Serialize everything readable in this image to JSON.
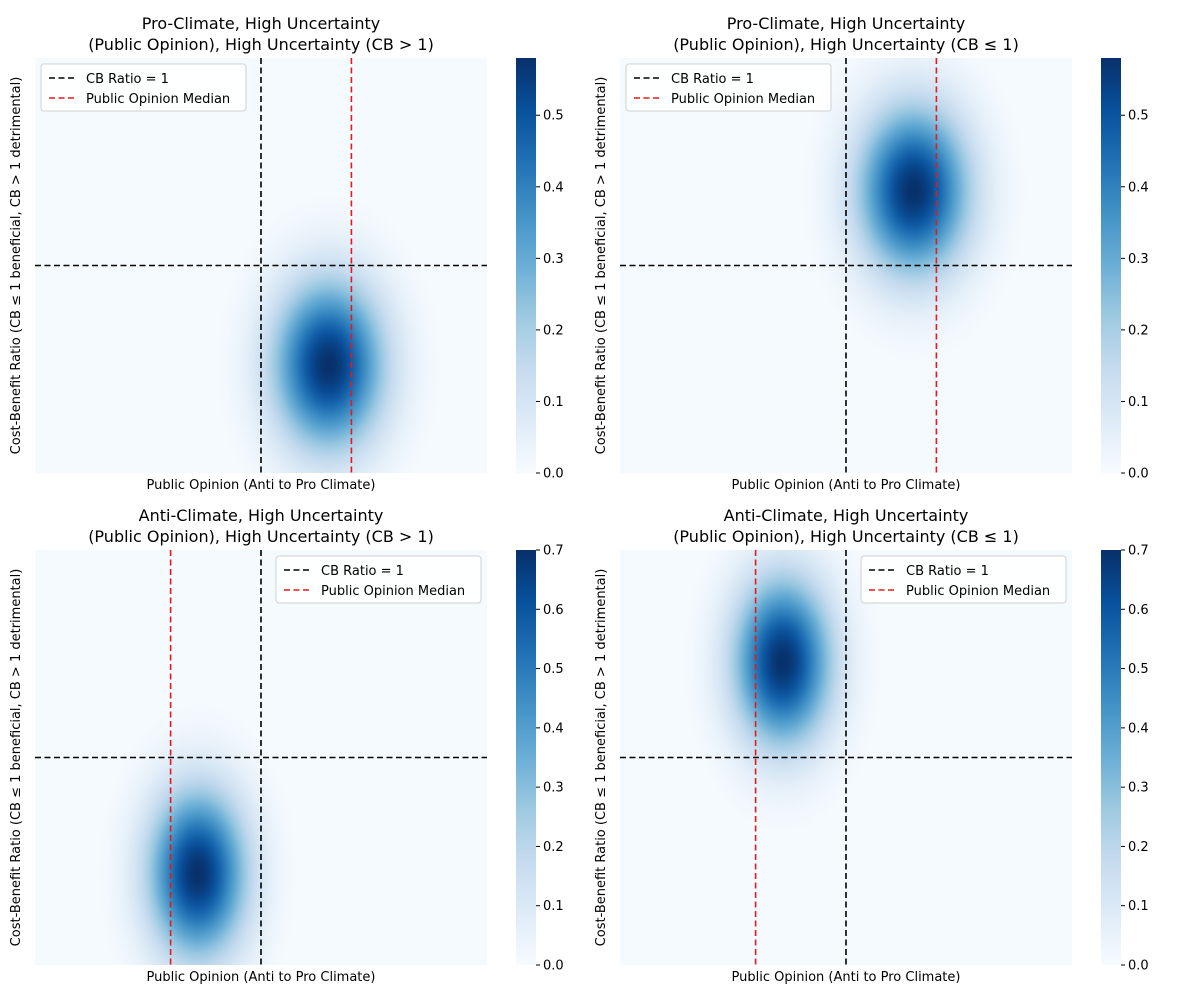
{
  "colormap": [
    "#f7fbff",
    "#deebf7",
    "#c6dbef",
    "#9ecae1",
    "#6baed6",
    "#4292c6",
    "#2171b5",
    "#08519c",
    "#08306b"
  ],
  "reference_line_colors": {
    "cb_ratio": "#000000",
    "median": "#e41a1c"
  },
  "chart_data": [
    {
      "type": "heatmap",
      "title": "Pro-Climate, High Uncertainty\n(Public Opinion), High Uncertainty (CB > 1)",
      "xlabel": "Public Opinion (Anti to Pro Climate)",
      "ylabel": "Cost-Benefit Ratio (CB ≤ 1 beneficial, CB > 1 detrimental)",
      "xlim": [
        0,
        1
      ],
      "ylim": [
        0,
        1
      ],
      "colorbar": {
        "min": 0,
        "max": 0.58,
        "ticks": [
          "0.0",
          "0.1",
          "0.2",
          "0.3",
          "0.4",
          "0.5"
        ]
      },
      "density": {
        "center_x": 0.65,
        "center_y": 0.26,
        "sigma_x": 0.085,
        "sigma_y": 0.14,
        "peak": 0.58
      },
      "reference_lines": {
        "cb_ratio_x": 0.5,
        "cb_ratio_y": 0.5,
        "median_x": 0.7
      },
      "legend": {
        "position": "upper-left",
        "entries": [
          "CB Ratio = 1",
          "Public Opinion Median"
        ]
      }
    },
    {
      "type": "heatmap",
      "title": "Pro-Climate, High Uncertainty\n(Public Opinion), High Uncertainty (CB ≤ 1)",
      "xlabel": "Public Opinion (Anti to Pro Climate)",
      "ylabel": "Cost-Benefit Ratio (CB ≤ 1 beneficial, CB > 1 detrimental)",
      "xlim": [
        0,
        1
      ],
      "ylim": [
        0,
        1
      ],
      "colorbar": {
        "min": 0,
        "max": 0.58,
        "ticks": [
          "0.0",
          "0.1",
          "0.2",
          "0.3",
          "0.4",
          "0.5"
        ]
      },
      "density": {
        "center_x": 0.65,
        "center_y": 0.68,
        "sigma_x": 0.085,
        "sigma_y": 0.14,
        "peak": 0.58
      },
      "reference_lines": {
        "cb_ratio_x": 0.5,
        "cb_ratio_y": 0.5,
        "median_x": 0.7
      },
      "legend": {
        "position": "upper-left",
        "entries": [
          "CB Ratio = 1",
          "Public Opinion Median"
        ]
      }
    },
    {
      "type": "heatmap",
      "title": "Anti-Climate, High Uncertainty\n(Public Opinion), High Uncertainty (CB > 1)",
      "xlabel": "Public Opinion (Anti to Pro Climate)",
      "ylabel": "Cost-Benefit Ratio (CB ≤ 1 beneficial, CB > 1 detrimental)",
      "xlim": [
        0,
        1
      ],
      "ylim": [
        0,
        1
      ],
      "colorbar": {
        "min": 0,
        "max": 0.7,
        "ticks": [
          "0.0",
          "0.1",
          "0.2",
          "0.3",
          "0.4",
          "0.5",
          "0.6",
          "0.7"
        ]
      },
      "density": {
        "center_x": 0.36,
        "center_y": 0.22,
        "sigma_x": 0.075,
        "sigma_y": 0.14,
        "peak": 0.7
      },
      "reference_lines": {
        "cb_ratio_x": 0.5,
        "cb_ratio_y": 0.5,
        "median_x": 0.3
      },
      "legend": {
        "position": "upper-right",
        "entries": [
          "CB Ratio = 1",
          "Public Opinion Median"
        ]
      }
    },
    {
      "type": "heatmap",
      "title": "Anti-Climate, High Uncertainty\n(Public Opinion), High Uncertainty (CB ≤ 1)",
      "xlabel": "Public Opinion (Anti to Pro Climate)",
      "ylabel": "Cost-Benefit Ratio (CB ≤ 1 beneficial, CB > 1 detrimental)",
      "xlim": [
        0,
        1
      ],
      "ylim": [
        0,
        1
      ],
      "colorbar": {
        "min": 0,
        "max": 0.7,
        "ticks": [
          "0.0",
          "0.1",
          "0.2",
          "0.3",
          "0.4",
          "0.5",
          "0.6",
          "0.7"
        ]
      },
      "density": {
        "center_x": 0.36,
        "center_y": 0.73,
        "sigma_x": 0.075,
        "sigma_y": 0.14,
        "peak": 0.7
      },
      "reference_lines": {
        "cb_ratio_x": 0.5,
        "cb_ratio_y": 0.5,
        "median_x": 0.3
      },
      "legend": {
        "position": "upper-right",
        "entries": [
          "CB Ratio = 1",
          "Public Opinion Median"
        ]
      }
    }
  ]
}
